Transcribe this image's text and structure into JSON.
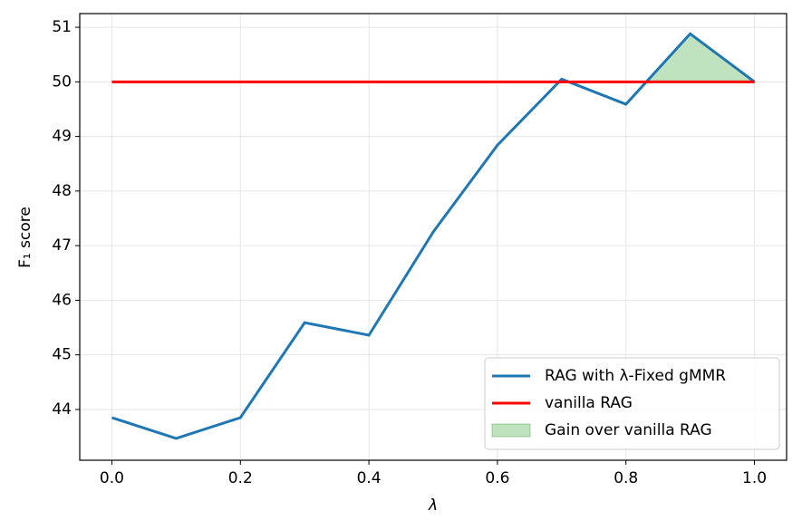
{
  "chart_data": {
    "type": "line",
    "xlabel": "λ",
    "ylabel": "F₁ score",
    "x": [
      0,
      0.1,
      0.2,
      0.3,
      0.4,
      0.5,
      0.6,
      0.7,
      0.8,
      0.9,
      1.0
    ],
    "series": [
      {
        "name": "RAG with λ-Fixed gMMR",
        "color": "#1f77b4",
        "values": [
          43.85,
          43.47,
          43.85,
          45.59,
          45.36,
          47.25,
          48.84,
          50.05,
          49.59,
          50.88,
          50.0
        ]
      },
      {
        "name": "vanilla RAG",
        "color": "#ff0000",
        "values": [
          50,
          50,
          50,
          50,
          50,
          50,
          50,
          50,
          50,
          50,
          50
        ]
      }
    ],
    "fill_between": {
      "name": "Gain over vanilla RAG",
      "color": "#2ca02c"
    },
    "xlim": [
      -0.05,
      1.05
    ],
    "ylim": [
      43.07,
      51.25
    ],
    "xticks": [
      {
        "value": 0,
        "label": "0.0"
      },
      0.2,
      0.4,
      0.6,
      0.8,
      {
        "value": 1,
        "label": "1.0"
      }
    ],
    "yticks": [
      44,
      45,
      46,
      47,
      48,
      49,
      50,
      51
    ],
    "grid": true,
    "legend": "lower right"
  }
}
